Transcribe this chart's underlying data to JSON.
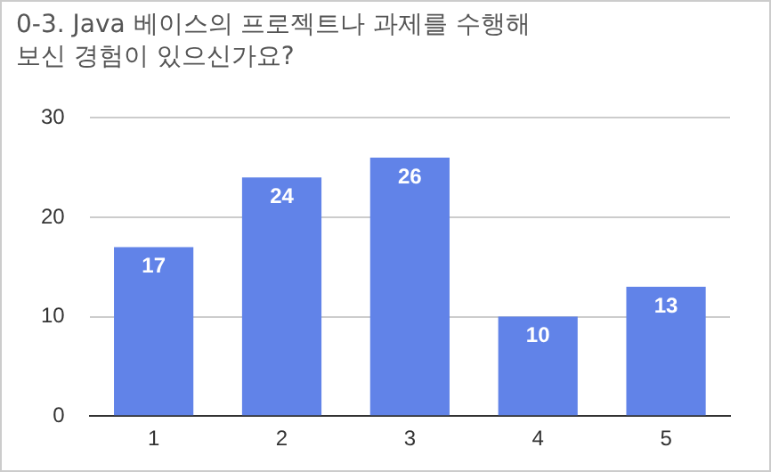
{
  "chart_data": {
    "type": "bar",
    "title": "0-3. Java 베이스의 프로젝트나 과제를 수행해보신 경험이 있으신가요?",
    "categories": [
      "1",
      "2",
      "3",
      "4",
      "5"
    ],
    "values": [
      17,
      24,
      26,
      10,
      13
    ],
    "color": "#6183e8",
    "ylim": [
      0,
      30
    ],
    "yticks": [
      0,
      10,
      20,
      30
    ],
    "grid": "y",
    "data_labels": true,
    "legend": false
  }
}
